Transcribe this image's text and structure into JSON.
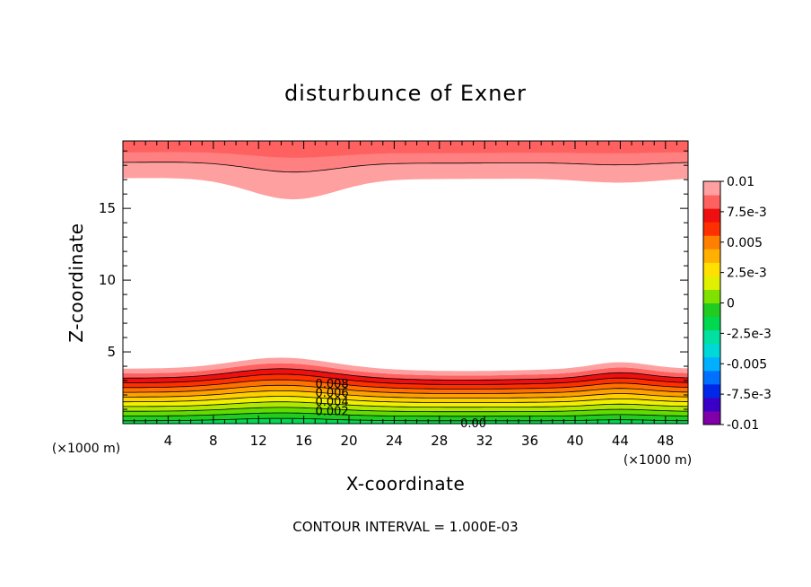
{
  "chart_data": {
    "type": "heatmap",
    "title": "disturbunce of Exner",
    "xlabel": "X-coordinate",
    "ylabel": "Z-coordinate",
    "x_unit": "(×1000 m)",
    "z_unit": "(×1000 m)",
    "xlim": [
      0,
      50
    ],
    "zlim": [
      0,
      19.7
    ],
    "x_ticks": [
      4,
      8,
      12,
      16,
      20,
      24,
      28,
      32,
      36,
      40,
      44,
      48
    ],
    "z_ticks": [
      5,
      10,
      15
    ],
    "colorbar": {
      "range": [
        -0.01,
        0.01
      ],
      "tick_labels": [
        "0.01",
        "7.5e-3",
        "0.005",
        "2.5e-3",
        "0",
        "-2.5e-3",
        "-0.005",
        "-7.5e-3",
        "-0.01"
      ],
      "colors": [
        "#7f00a8",
        "#3b00c8",
        "#0028e6",
        "#0070ff",
        "#00b0ff",
        "#00d8d8",
        "#00e0a0",
        "#00d850",
        "#20cc20",
        "#80e000",
        "#e0f000",
        "#ffe000",
        "#ffb000",
        "#ff8000",
        "#ff3000",
        "#ee1010",
        "#ff6060",
        "#ffa0a0"
      ]
    },
    "contour_interval": 0.001,
    "contour_labels": [
      "0.008",
      "0.006",
      "0.004",
      "0.002",
      "0.00"
    ],
    "footer": "CONTOUR INTERVAL = 1.000E-03",
    "low_field": {
      "description_levels": [
        0.0,
        0.001,
        0.002,
        0.003,
        0.004,
        0.005,
        0.006,
        0.007,
        0.008,
        0.009,
        0.01
      ],
      "fill_colors": [
        "#00d850",
        "#20cc20",
        "#60dc00",
        "#b0e800",
        "#f0f000",
        "#ffd000",
        "#ffa000",
        "#ff7000",
        "#ff3000",
        "#ee1010",
        "#ff6060",
        "#ffa0a0"
      ]
    }
  }
}
